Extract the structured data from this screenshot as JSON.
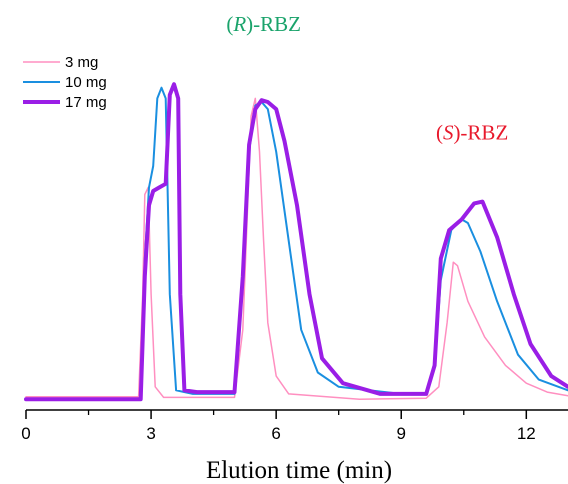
{
  "chart_data": {
    "type": "line",
    "title": "",
    "xlabel": "Elution time (min)",
    "ylabel": "",
    "xlim": [
      0,
      13
    ],
    "ylim": [
      0,
      1
    ],
    "x_ticks": [
      "0",
      "3",
      "6",
      "9",
      "12"
    ],
    "x_tick_values": [
      0,
      3,
      6,
      9,
      12
    ],
    "grid": false,
    "legend_position": "top-left",
    "annotations": [
      {
        "text_prefix": "(",
        "text_italic": "R",
        "text_suffix": ")-RBZ",
        "x": 5.7,
        "y": 1.04,
        "color": "#1aa36b"
      },
      {
        "text_prefix": "(",
        "text_italic": "S",
        "text_suffix": ")-RBZ",
        "x": 10.7,
        "y": 0.735,
        "color": "#e8192c"
      }
    ],
    "series": [
      {
        "name": "3 mg",
        "color": "#ff8fc0",
        "stroke_width": 1.5,
        "points": [
          [
            0,
            0.012
          ],
          [
            2.7,
            0.012
          ],
          [
            2.8,
            0.3
          ],
          [
            2.85,
            0.58
          ],
          [
            2.93,
            0.6
          ],
          [
            3.0,
            0.3
          ],
          [
            3.1,
            0.04
          ],
          [
            3.3,
            0.01
          ],
          [
            5.0,
            0.01
          ],
          [
            5.2,
            0.2
          ],
          [
            5.3,
            0.5
          ],
          [
            5.4,
            0.8
          ],
          [
            5.5,
            0.85
          ],
          [
            5.6,
            0.7
          ],
          [
            5.7,
            0.45
          ],
          [
            5.8,
            0.22
          ],
          [
            6.0,
            0.07
          ],
          [
            6.3,
            0.02
          ],
          [
            8.0,
            0.005
          ],
          [
            9.6,
            0.008
          ],
          [
            9.9,
            0.04
          ],
          [
            10.1,
            0.22
          ],
          [
            10.25,
            0.39
          ],
          [
            10.35,
            0.38
          ],
          [
            10.6,
            0.28
          ],
          [
            11.0,
            0.18
          ],
          [
            11.5,
            0.1
          ],
          [
            12.0,
            0.05
          ],
          [
            12.5,
            0.025
          ],
          [
            13.0,
            0.015
          ]
        ]
      },
      {
        "name": "10 mg",
        "color": "#1a8fe0",
        "stroke_width": 2,
        "points": [
          [
            0,
            0.005
          ],
          [
            2.75,
            0.005
          ],
          [
            2.85,
            0.4
          ],
          [
            2.95,
            0.6
          ],
          [
            3.05,
            0.66
          ],
          [
            3.15,
            0.85
          ],
          [
            3.25,
            0.88
          ],
          [
            3.35,
            0.85
          ],
          [
            3.45,
            0.3
          ],
          [
            3.6,
            0.03
          ],
          [
            4.0,
            0.02
          ],
          [
            5.0,
            0.02
          ],
          [
            5.2,
            0.35
          ],
          [
            5.35,
            0.7
          ],
          [
            5.5,
            0.83
          ],
          [
            5.65,
            0.84
          ],
          [
            5.8,
            0.82
          ],
          [
            6.0,
            0.7
          ],
          [
            6.3,
            0.45
          ],
          [
            6.6,
            0.2
          ],
          [
            7.0,
            0.08
          ],
          [
            7.5,
            0.04
          ],
          [
            9.0,
            0.02
          ],
          [
            9.6,
            0.02
          ],
          [
            9.8,
            0.1
          ],
          [
            9.95,
            0.34
          ],
          [
            10.2,
            0.48
          ],
          [
            10.45,
            0.51
          ],
          [
            10.6,
            0.5
          ],
          [
            10.9,
            0.42
          ],
          [
            11.3,
            0.28
          ],
          [
            11.8,
            0.13
          ],
          [
            12.3,
            0.06
          ],
          [
            13.0,
            0.03
          ]
        ]
      },
      {
        "name": "17 mg",
        "color": "#9a1ee6",
        "stroke_width": 4,
        "points": [
          [
            0,
            0.005
          ],
          [
            2.75,
            0.005
          ],
          [
            2.85,
            0.35
          ],
          [
            2.95,
            0.55
          ],
          [
            3.05,
            0.59
          ],
          [
            3.2,
            0.6
          ],
          [
            3.35,
            0.61
          ],
          [
            3.45,
            0.86
          ],
          [
            3.55,
            0.89
          ],
          [
            3.65,
            0.85
          ],
          [
            3.7,
            0.3
          ],
          [
            3.8,
            0.03
          ],
          [
            4.1,
            0.025
          ],
          [
            5.0,
            0.025
          ],
          [
            5.2,
            0.35
          ],
          [
            5.35,
            0.72
          ],
          [
            5.5,
            0.82
          ],
          [
            5.65,
            0.845
          ],
          [
            5.8,
            0.84
          ],
          [
            6.0,
            0.82
          ],
          [
            6.2,
            0.73
          ],
          [
            6.5,
            0.55
          ],
          [
            6.8,
            0.3
          ],
          [
            7.1,
            0.12
          ],
          [
            7.6,
            0.05
          ],
          [
            8.5,
            0.02
          ],
          [
            9.6,
            0.02
          ],
          [
            9.8,
            0.1
          ],
          [
            9.95,
            0.4
          ],
          [
            10.15,
            0.48
          ],
          [
            10.45,
            0.51
          ],
          [
            10.75,
            0.555
          ],
          [
            10.95,
            0.56
          ],
          [
            11.3,
            0.46
          ],
          [
            11.7,
            0.3
          ],
          [
            12.1,
            0.16
          ],
          [
            12.6,
            0.07
          ],
          [
            13.0,
            0.04
          ]
        ]
      }
    ]
  }
}
